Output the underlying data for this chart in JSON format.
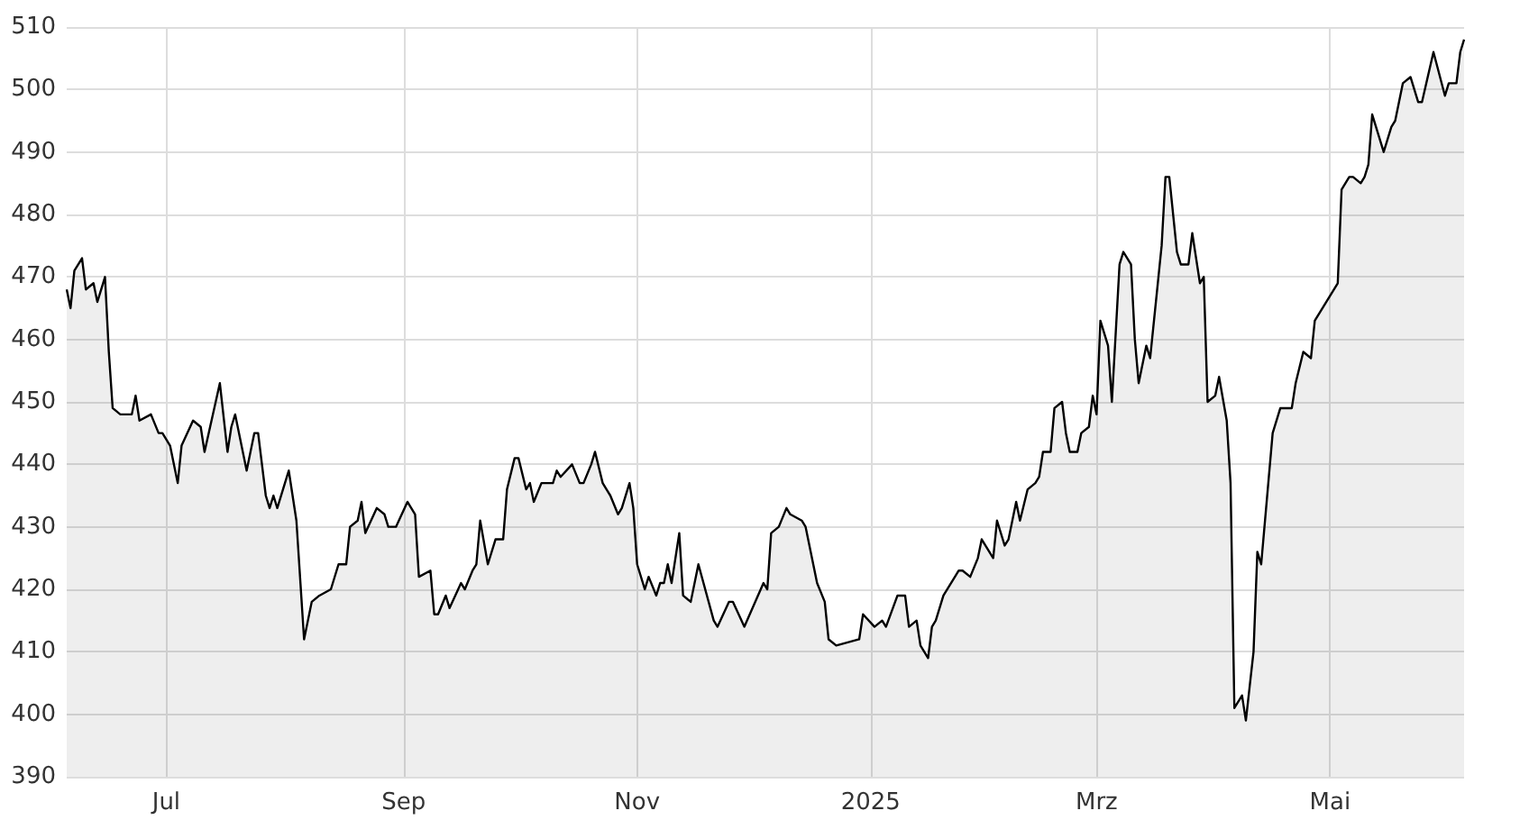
{
  "chart_data": {
    "type": "area",
    "x": [
      "2024-06-05",
      "2024-06-06",
      "2024-06-07",
      "2024-06-09",
      "2024-06-10",
      "2024-06-12",
      "2024-06-13",
      "2024-06-15",
      "2024-06-16",
      "2024-06-17",
      "2024-06-19",
      "2024-06-20",
      "2024-06-22",
      "2024-06-23",
      "2024-06-24",
      "2024-06-27",
      "2024-06-29",
      "2024-06-30",
      "2024-07-02",
      "2024-07-04",
      "2024-07-05",
      "2024-07-08",
      "2024-07-10",
      "2024-07-11",
      "2024-07-15",
      "2024-07-17",
      "2024-07-18",
      "2024-07-19",
      "2024-07-21",
      "2024-07-22",
      "2024-07-24",
      "2024-07-25",
      "2024-07-27",
      "2024-07-28",
      "2024-07-29",
      "2024-07-30",
      "2024-08-01",
      "2024-08-02",
      "2024-08-04",
      "2024-08-06",
      "2024-08-08",
      "2024-08-10",
      "2024-08-13",
      "2024-08-15",
      "2024-08-17",
      "2024-08-18",
      "2024-08-20",
      "2024-08-21",
      "2024-08-22",
      "2024-08-25",
      "2024-08-27",
      "2024-08-28",
      "2024-08-30",
      "2024-09-02",
      "2024-09-04",
      "2024-09-05",
      "2024-09-08",
      "2024-09-09",
      "2024-09-10",
      "2024-09-12",
      "2024-09-13",
      "2024-09-16",
      "2024-09-17",
      "2024-09-19",
      "2024-09-20",
      "2024-09-21",
      "2024-09-23",
      "2024-09-25",
      "2024-09-27",
      "2024-09-28",
      "2024-09-30",
      "2024-10-01",
      "2024-10-03",
      "2024-10-04",
      "2024-10-05",
      "2024-10-07",
      "2024-10-10",
      "2024-10-11",
      "2024-10-12",
      "2024-10-15",
      "2024-10-17",
      "2024-10-18",
      "2024-10-20",
      "2024-10-21",
      "2024-10-23",
      "2024-10-24",
      "2024-10-25",
      "2024-10-27",
      "2024-10-28",
      "2024-10-30",
      "2024-10-31",
      "2024-11-01",
      "2024-11-03",
      "2024-11-04",
      "2024-11-06",
      "2024-11-07",
      "2024-11-08",
      "2024-11-09",
      "2024-11-10",
      "2024-11-12",
      "2024-11-13",
      "2024-11-15",
      "2024-11-17",
      "2024-11-21",
      "2024-11-22",
      "2024-11-25",
      "2024-11-26",
      "2024-11-29",
      "2024-12-04",
      "2024-12-05",
      "2024-12-06",
      "2024-12-08",
      "2024-12-10",
      "2024-12-11",
      "2024-12-14",
      "2024-12-15",
      "2024-12-18",
      "2024-12-20",
      "2024-12-21",
      "2024-12-23",
      "2024-12-29",
      "2024-12-30",
      "2025-01-02",
      "2025-01-04",
      "2025-01-05",
      "2025-01-08",
      "2025-01-10",
      "2025-01-11",
      "2025-01-13",
      "2025-01-14",
      "2025-01-16",
      "2025-01-17",
      "2025-01-18",
      "2025-01-20",
      "2025-01-23",
      "2025-01-24",
      "2025-01-25",
      "2025-01-27",
      "2025-01-29",
      "2025-01-30",
      "2025-02-02",
      "2025-02-03",
      "2025-02-05",
      "2025-02-06",
      "2025-02-08",
      "2025-02-09",
      "2025-02-11",
      "2025-02-13",
      "2025-02-14",
      "2025-02-15",
      "2025-02-17",
      "2025-02-18",
      "2025-02-20",
      "2025-02-21",
      "2025-02-22",
      "2025-02-24",
      "2025-02-25",
      "2025-02-27",
      "2025-02-28",
      "2025-03-01",
      "2025-03-02",
      "2025-03-04",
      "2025-03-05",
      "2025-03-07",
      "2025-03-08",
      "2025-03-10",
      "2025-03-11",
      "2025-03-12",
      "2025-03-14",
      "2025-03-15",
      "2025-03-18",
      "2025-03-19",
      "2025-03-20",
      "2025-03-22",
      "2025-03-23",
      "2025-03-25",
      "2025-03-26",
      "2025-03-28",
      "2025-03-29",
      "2025-03-30",
      "2025-04-01",
      "2025-04-02",
      "2025-04-04",
      "2025-04-05",
      "2025-04-06",
      "2025-04-08",
      "2025-04-09",
      "2025-04-11",
      "2025-04-12",
      "2025-04-13",
      "2025-04-15",
      "2025-04-16",
      "2025-04-18",
      "2025-04-21",
      "2025-04-22",
      "2025-04-24",
      "2025-04-26",
      "2025-04-27",
      "2025-04-30",
      "2025-05-03",
      "2025-05-04",
      "2025-05-06",
      "2025-05-07",
      "2025-05-09",
      "2025-05-10",
      "2025-05-11",
      "2025-05-12",
      "2025-05-15",
      "2025-05-17",
      "2025-05-18",
      "2025-05-20",
      "2025-05-22",
      "2025-05-24",
      "2025-05-25",
      "2025-05-28",
      "2025-05-31",
      "2025-06-01",
      "2025-06-03",
      "2025-06-04",
      "2025-06-05"
    ],
    "series": [
      {
        "color": "#000000",
        "values": [
          468,
          465,
          471,
          473,
          468,
          469,
          466,
          470,
          458,
          449,
          448,
          448,
          448,
          451,
          447,
          448,
          445,
          445,
          443,
          437,
          443,
          447,
          446,
          442,
          453,
          442,
          446,
          448,
          442,
          439,
          445,
          445,
          435,
          433,
          435,
          433,
          437,
          439,
          431,
          412,
          418,
          419,
          420,
          424,
          424,
          430,
          431,
          434,
          429,
          433,
          432,
          430,
          430,
          434,
          432,
          422,
          423,
          416,
          416,
          419,
          417,
          421,
          420,
          423,
          424,
          431,
          424,
          428,
          428,
          436,
          441,
          441,
          436,
          437,
          434,
          437,
          437,
          439,
          438,
          440,
          437,
          437,
          440,
          442,
          437,
          436,
          435,
          432,
          433,
          437,
          433,
          424,
          420,
          422,
          419,
          421,
          421,
          424,
          421,
          429,
          419,
          418,
          424,
          415,
          414,
          418,
          418,
          414,
          421,
          420,
          429,
          430,
          433,
          432,
          431,
          430,
          421,
          418,
          412,
          411,
          412,
          416,
          414,
          415,
          414,
          419,
          419,
          414,
          415,
          411,
          409,
          414,
          415,
          419,
          422,
          423,
          423,
          422,
          425,
          428,
          425,
          431,
          427,
          428,
          434,
          431,
          436,
          437,
          438,
          442,
          442,
          449,
          450,
          445,
          442,
          442,
          445,
          446,
          451,
          448,
          463,
          459,
          450,
          472,
          474,
          472,
          460,
          453,
          459,
          457,
          475,
          486,
          486,
          474,
          472,
          472,
          477,
          469,
          470,
          450,
          451,
          454,
          447,
          437,
          401,
          403,
          399,
          410,
          426,
          424,
          438,
          445,
          449,
          449,
          453,
          458,
          457,
          463,
          466,
          469,
          484,
          486,
          486,
          485,
          486,
          488,
          496,
          490,
          494,
          495,
          501,
          502,
          498,
          498,
          506,
          499,
          501,
          501,
          506,
          508
        ]
      }
    ],
    "xlim": [
      "2024-06-05",
      "2025-06-05"
    ],
    "xticks": [
      {
        "value": "2024-07-01",
        "label": "Jul"
      },
      {
        "value": "2024-09-01",
        "label": "Sep"
      },
      {
        "value": "2024-11-01",
        "label": "Nov"
      },
      {
        "value": "2025-01-01",
        "label": "2025"
      },
      {
        "value": "2025-03-01",
        "label": "Mrz"
      },
      {
        "value": "2025-05-01",
        "label": "Mai"
      }
    ],
    "ylim": [
      390,
      510
    ],
    "yticks": [
      390,
      400,
      410,
      420,
      430,
      440,
      450,
      460,
      470,
      480,
      490,
      500,
      510
    ],
    "grid": true
  }
}
